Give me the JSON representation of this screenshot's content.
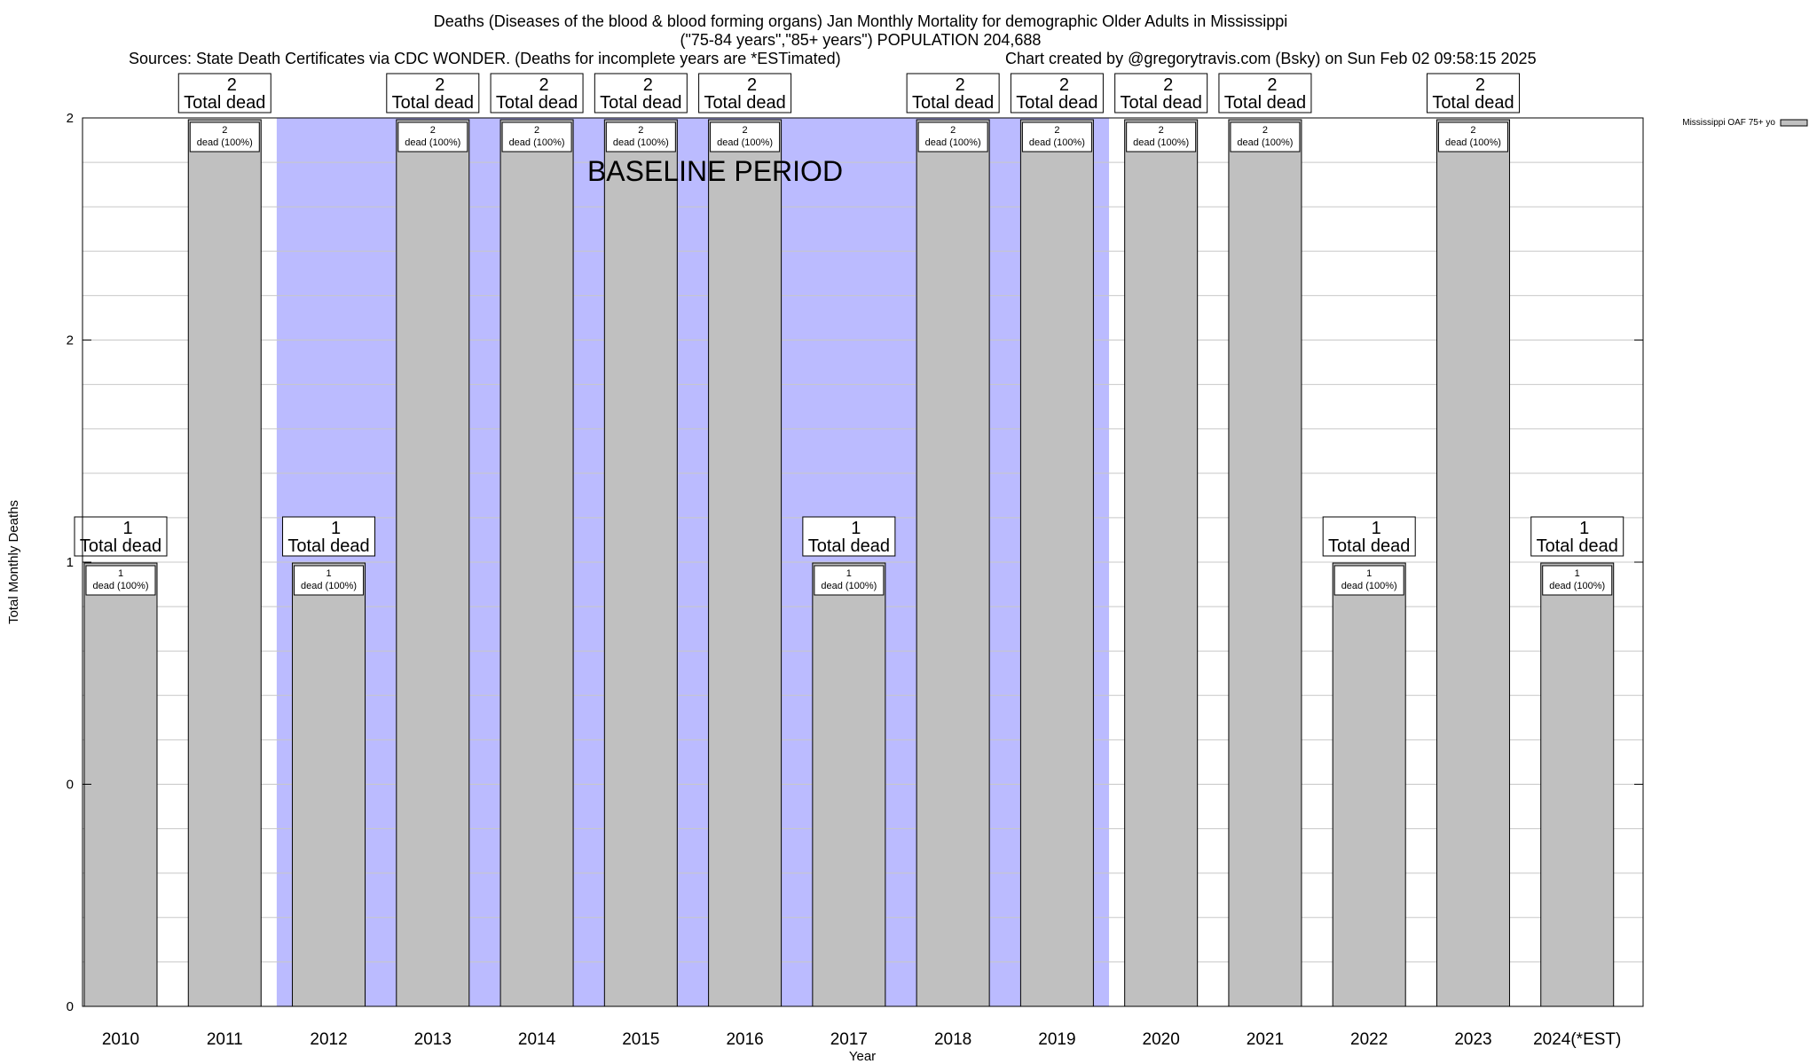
{
  "chart_data": {
    "type": "bar",
    "title_lines": [
      "Deaths (Diseases of the blood & blood forming organs) Jan Monthly Mortality for demographic Older Adults in Mississippi",
      "(\"75-84 years\",\"85+ years\") POPULATION 204,688"
    ],
    "sources": "Sources: State Death Certificates via CDC WONDER. (Deaths for incomplete years are *ESTimated)",
    "credit": "Chart created by @gregorytravis.com (Bsky) on Sun Feb 02 09:58:15 2025",
    "xlabel": "Year",
    "ylabel": "Total Monthly Deaths",
    "ylim": [
      0,
      2
    ],
    "yticks": [
      "0",
      "0",
      "1",
      "2",
      "2"
    ],
    "categories": [
      "2010",
      "2011",
      "2012",
      "2013",
      "2014",
      "2015",
      "2016",
      "2017",
      "2018",
      "2019",
      "2020",
      "2021",
      "2022",
      "2023",
      "2024(*EST)"
    ],
    "series": [
      {
        "name": "Mississippi OAF 75+ yo",
        "color": "#c0c0c0",
        "values": [
          1,
          2,
          1,
          2,
          2,
          2,
          2,
          1,
          2,
          2,
          2,
          2,
          1,
          2,
          1
        ]
      }
    ],
    "bar_labels_total": [
      "1",
      "2",
      "1",
      "2",
      "2",
      "2",
      "2",
      "1",
      "2",
      "2",
      "2",
      "2",
      "1",
      "2",
      "1"
    ],
    "total_suffix": "Total dead",
    "bar_labels_inner": [
      "1",
      "2",
      "1",
      "2",
      "2",
      "2",
      "2",
      "1",
      "2",
      "2",
      "2",
      "2",
      "1",
      "2",
      "1"
    ],
    "inner_suffix": "dead (100%)",
    "baseline_label": "BASELINE PERIOD",
    "baseline_color": "#bbbbff",
    "baseline_categories": [
      "2012",
      "2013",
      "2014",
      "2015",
      "2016",
      "2017",
      "2018",
      "2019"
    ],
    "grid": true,
    "legend_position": "top-right"
  }
}
